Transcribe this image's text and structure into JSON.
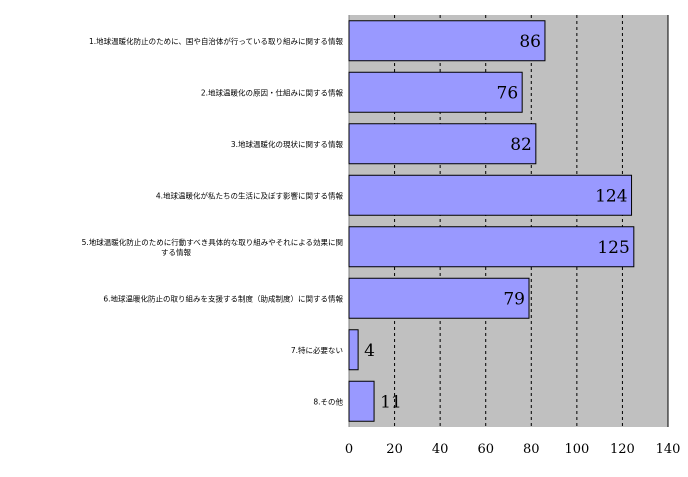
{
  "chart_data": {
    "type": "bar",
    "orientation": "horizontal",
    "title": "",
    "xlabel": "",
    "ylabel": "",
    "categories": [
      [
        "1.地球温暖化防止のために、国や自治体が行っている取り組みに関する情報"
      ],
      [
        "2.地球温暖化の原因・仕組みに関する情報"
      ],
      [
        "3.地球温暖化の現状に関する情報"
      ],
      [
        "4.地球温暖化が私たちの生活に及ぼす影響に関する情報"
      ],
      [
        "5.地球温暖化防止のために行動すべき具体的な取り組みやそれによる効果に関",
        "する情報"
      ],
      [
        "6.地球温暖化防止の取り組みを支援する制度（助成制度）に関する情報"
      ],
      [
        "7.特に必要ない"
      ],
      [
        "8.その他"
      ]
    ],
    "values": [
      86,
      76,
      82,
      124,
      125,
      79,
      4,
      11
    ],
    "xlim": [
      0,
      140
    ],
    "xticks": [
      0,
      20,
      40,
      60,
      80,
      100,
      120,
      140
    ],
    "grid": "vertical-dashed",
    "legend": "none",
    "colors": {
      "bar_fill": "#9999ff",
      "bar_stroke": "#000000",
      "plot_bg": "#c0c0c0",
      "grid": "#000000"
    }
  }
}
